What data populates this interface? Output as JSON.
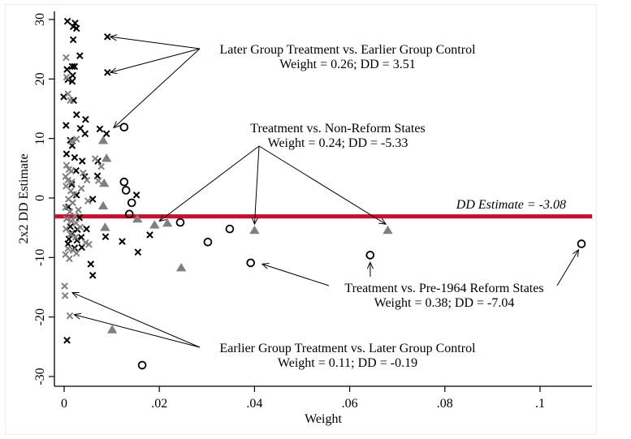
{
  "chart_data": {
    "type": "scatter",
    "title": "",
    "xlabel": "Weight",
    "ylabel": "2x2 DD Estimate",
    "xlim": [
      -0.002,
      0.1107
    ],
    "ylim": [
      -31.6,
      31.6
    ],
    "x_ticks": [
      0,
      0.02,
      0.04,
      0.06,
      0.08,
      0.1
    ],
    "x_tick_labels": [
      "0",
      ".02",
      ".04",
      ".06",
      ".08",
      ".1"
    ],
    "y_ticks": [
      30,
      20,
      10,
      0,
      -10,
      -20,
      -30
    ],
    "y_tick_labels": [
      "30",
      "20",
      "10",
      "0",
      "-10",
      "-20",
      "-30"
    ],
    "grid": false,
    "reference_line": {
      "label": "DD Estimate = -3.08",
      "y": -3.08,
      "color": "#c8102e"
    },
    "colors": {
      "black": "#000000",
      "gray": "#808080",
      "ref": "#c8102e"
    },
    "series": [
      {
        "name": "Later Group Treatment vs. Earlier Group Control",
        "marker": "x",
        "color": "#000000",
        "points": [
          [
            0.0007,
            29.7
          ],
          [
            0.0023,
            29.4
          ],
          [
            0.0019,
            28.8
          ],
          [
            0.0026,
            28.5
          ],
          [
            0.0019,
            26.6
          ],
          [
            0.0091,
            27.1
          ],
          [
            0.0033,
            23.9
          ],
          [
            0.0006,
            21.6
          ],
          [
            0.0017,
            22.1
          ],
          [
            0.0022,
            22.1
          ],
          [
            0.0018,
            20.6
          ],
          [
            0.0091,
            21.1
          ],
          [
            0.0008,
            19.9
          ],
          [
            0.0017,
            19.6
          ],
          [
            0.002,
            16.4
          ],
          [
            -0.0001,
            17.0
          ],
          [
            0.0026,
            14.0
          ],
          [
            0.0045,
            13.2
          ],
          [
            0.0004,
            12.2
          ],
          [
            0.0034,
            11.7
          ],
          [
            0.0075,
            11.6
          ],
          [
            0.0089,
            10.8
          ],
          [
            0.0044,
            10.8
          ],
          [
            0.0013,
            9.7
          ],
          [
            0.0017,
            8.8
          ],
          [
            0.0005,
            7.4
          ],
          [
            0.0022,
            6.8
          ],
          [
            0.0038,
            6.2
          ],
          [
            0.0071,
            6.2
          ],
          [
            0.0025,
            4.6
          ],
          [
            0.0043,
            3.6
          ],
          [
            0.007,
            3.7
          ],
          [
            0.0016,
            2.3
          ],
          [
            0.006,
            -0.2
          ],
          [
            0.0026,
            0.5
          ],
          [
            0.0152,
            0.5
          ],
          [
            0.0009,
            -1.5
          ],
          [
            0.0032,
            -3.3
          ],
          [
            0.0013,
            -4.8
          ],
          [
            0.0028,
            -5.3
          ],
          [
            0.0047,
            -5.2
          ],
          [
            0.0087,
            -6.5
          ],
          [
            0.018,
            -6.2
          ],
          [
            0.0122,
            -7.3
          ],
          [
            0.0017,
            -5.9
          ],
          [
            0.0036,
            -6.6
          ],
          [
            0.001,
            -6.9
          ],
          [
            0.0027,
            -7.1
          ],
          [
            0.0155,
            -9.1
          ],
          [
            0.0056,
            -11.1
          ],
          [
            0.006,
            -13.0
          ],
          [
            0.0022,
            -8.4
          ],
          [
            0.0008,
            -7.7
          ],
          [
            0.0037,
            -8.3
          ],
          [
            0.0006,
            -23.9
          ]
        ]
      },
      {
        "name": "Earlier Group Treatment vs. Later Group Control",
        "marker": "x",
        "color": "#808080",
        "points": [
          [
            0.0004,
            23.6
          ],
          [
            0.0005,
            20.3
          ],
          [
            0.0008,
            17.5
          ],
          [
            0.0013,
            16.4
          ],
          [
            0.0016,
            9.5
          ],
          [
            0.0026,
            9.9
          ],
          [
            0.0005,
            5.5
          ],
          [
            0.001,
            4.8
          ],
          [
            0.0015,
            4.5
          ],
          [
            0.0003,
            3.6
          ],
          [
            0.0008,
            3.0
          ],
          [
            0.0016,
            2.7
          ],
          [
            0.0004,
            2.0
          ],
          [
            0.0014,
            1.2
          ],
          [
            0.002,
            0.6
          ],
          [
            0.0009,
            -0.2
          ],
          [
            0.0018,
            -0.8
          ],
          [
            0.0003,
            -1.6
          ],
          [
            0.0012,
            -2.3
          ],
          [
            0.0023,
            -3.0
          ],
          [
            0.0005,
            -3.5
          ],
          [
            0.0015,
            -3.9
          ],
          [
            0.0025,
            -4.2
          ],
          [
            0.0004,
            -5.2
          ],
          [
            0.0013,
            -6.1
          ],
          [
            0.0024,
            -6.6
          ],
          [
            0.0045,
            -7.5
          ],
          [
            0.0052,
            -7.8
          ],
          [
            0.0008,
            -8.5
          ],
          [
            0.0019,
            -8.8
          ],
          [
            0.0003,
            -9.5
          ],
          [
            0.0011,
            -10.2
          ],
          [
            0.0026,
            -9.3
          ],
          [
            0.0065,
            6.6
          ],
          [
            0.0078,
            5.3
          ],
          [
            0.0072,
            2.9
          ],
          [
            0.0048,
            3.0
          ],
          [
            0.004,
            4.2
          ],
          [
            0.0036,
            1.6
          ],
          [
            0.005,
            -0.5
          ],
          [
            0.003,
            -2.0
          ],
          [
            0.0034,
            -4.9
          ],
          [
            0.0001,
            -14.8
          ],
          [
            0.0002,
            -16.4
          ],
          [
            0.0012,
            -19.8
          ]
        ]
      },
      {
        "name": "Treatment vs. Non-Reform States",
        "marker": "triangle",
        "color": "#808080",
        "points": [
          [
            0.0082,
            9.6
          ],
          [
            0.0089,
            6.6
          ],
          [
            0.0084,
            2.4
          ],
          [
            0.0082,
            -1.4
          ],
          [
            0.0154,
            -3.6
          ],
          [
            0.019,
            -4.6
          ],
          [
            0.0217,
            -4.3
          ],
          [
            0.0086,
            -5.0
          ],
          [
            0.04,
            -5.5
          ],
          [
            0.068,
            -5.5
          ],
          [
            0.0246,
            -11.8
          ],
          [
            0.0101,
            -22.2
          ]
        ]
      },
      {
        "name": "Treatment vs. Pre-1964 Reform States",
        "marker": "circle",
        "color": "#000000",
        "points": [
          [
            0.0126,
            11.9
          ],
          [
            0.0126,
            2.7
          ],
          [
            0.013,
            1.3
          ],
          [
            0.0142,
            -0.8
          ],
          [
            0.0137,
            -2.7
          ],
          [
            0.0244,
            -4.1
          ],
          [
            0.0302,
            -7.4
          ],
          [
            0.0348,
            -5.2
          ],
          [
            0.0392,
            -10.9
          ],
          [
            0.0643,
            -9.6
          ],
          [
            0.1087,
            -7.7
          ],
          [
            0.0164,
            -28.1
          ]
        ]
      }
    ],
    "annotations": [
      {
        "id": "later-treat",
        "lines": [
          "Later Group Treatment vs. Earlier Group Control",
          "Weight = 0.26; DD = 3.51"
        ],
        "targets": [
          [
            0.0097,
            27.1
          ],
          [
            0.0097,
            21.1
          ],
          [
            0.0104,
            11.8
          ]
        ]
      },
      {
        "id": "nonreform",
        "lines": [
          "Treatment vs. Non-Reform States",
          "Weight = 0.24; DD = -5.33"
        ],
        "targets": [
          [
            0.02,
            -3.9
          ],
          [
            0.04,
            -4.4
          ],
          [
            0.0676,
            -4.4
          ]
        ]
      },
      {
        "id": "pre1964",
        "lines": [
          "Treatment vs. Pre-1964 Reform States",
          "Weight = 0.38; DD = -7.04"
        ],
        "targets": [
          [
            0.0416,
            -11.1
          ],
          [
            0.0643,
            -10.8
          ],
          [
            0.1081,
            -8.7
          ]
        ]
      },
      {
        "id": "earlier-treat",
        "lines": [
          "Earlier Group Treatment vs. Later Group Control",
          "Weight = 0.11; DD = -0.19"
        ],
        "targets": [
          [
            0.0017,
            -15.9
          ],
          [
            0.0021,
            -19.6
          ]
        ]
      }
    ]
  }
}
